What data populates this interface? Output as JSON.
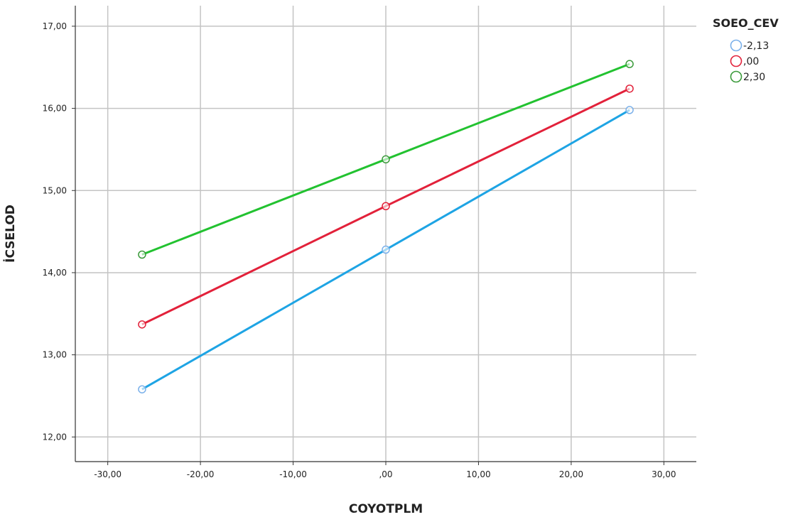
{
  "chart_data": {
    "type": "line",
    "title": "",
    "xlabel": "COYOTPLM",
    "ylabel": "İCSELOD",
    "xlim": [
      -33.5,
      33.5
    ],
    "ylim": [
      11.7,
      17.25
    ],
    "x_ticks": [
      -30,
      -20,
      -10,
      0,
      10,
      20,
      30
    ],
    "x_tick_labels": [
      "-30,00",
      "-20,00",
      "-10,00",
      ",00",
      "10,00",
      "20,00",
      "30,00"
    ],
    "y_ticks": [
      12,
      13,
      14,
      15,
      16,
      17
    ],
    "y_tick_labels": [
      "12,00",
      "13,00",
      "14,00",
      "15,00",
      "16,00",
      "17,00"
    ],
    "grid": true,
    "legend": {
      "title": "SOEO_CEV",
      "placement": "right-top"
    },
    "x": [
      -26.3,
      0,
      26.3
    ],
    "series": [
      {
        "name": "-2,13",
        "values": [
          12.58,
          14.28,
          15.98
        ],
        "line_color": "#1ea4e4",
        "marker_color": "#7ab0ea"
      },
      {
        "name": ",00",
        "values": [
          13.37,
          14.81,
          16.24
        ],
        "line_color": "#e2213a",
        "marker_color": "#e2213a"
      },
      {
        "name": "2,30",
        "values": [
          14.22,
          15.38,
          16.54
        ],
        "line_color": "#22c230",
        "marker_color": "#3a9a3a"
      }
    ]
  }
}
